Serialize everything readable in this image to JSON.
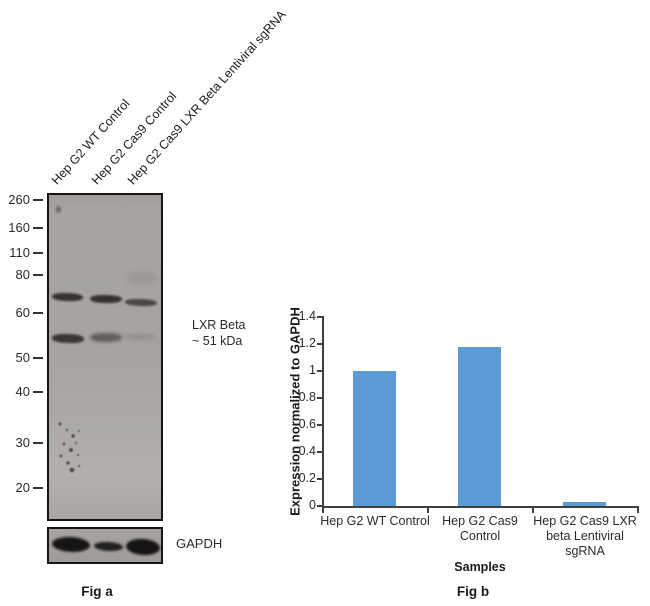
{
  "figure": {
    "fig_a": {
      "caption": "Fig a",
      "lane_labels": [
        "Hep G2 WT Control",
        "Hep G2 Cas9 Control",
        "Hep G2 Cas9 LXR Beta Lentiviral sgRNA"
      ],
      "mw_markers": [
        "260",
        "160",
        "110",
        "80",
        "60",
        "50",
        "40",
        "30",
        "20"
      ],
      "annotation": {
        "line1": "LXR Beta",
        "line2": "~ 51 kDa"
      },
      "gapdh_label": "GAPDH"
    },
    "fig_b": {
      "caption": "Fig b"
    }
  },
  "chart_data": {
    "type": "bar",
    "title": "",
    "categories": [
      "Hep G2 WT Control",
      "Hep G2 Cas9 Control",
      "Hep G2 Cas9 LXR beta Lentiviral sgRNA"
    ],
    "values": [
      1.0,
      1.18,
      0.03
    ],
    "xlabel": "Samples",
    "ylabel": "Expression normalized to GAPDH",
    "ylim": [
      0,
      1.4
    ],
    "ytick_step": 0.2,
    "yticks": [
      "0",
      "0.2",
      "0.4",
      "0.6",
      "0.8",
      "1",
      "1.2",
      "1.4"
    ],
    "bar_color": "#5B9BD5",
    "axis_color": "#3f3f3f",
    "grid": false,
    "legend": null
  }
}
